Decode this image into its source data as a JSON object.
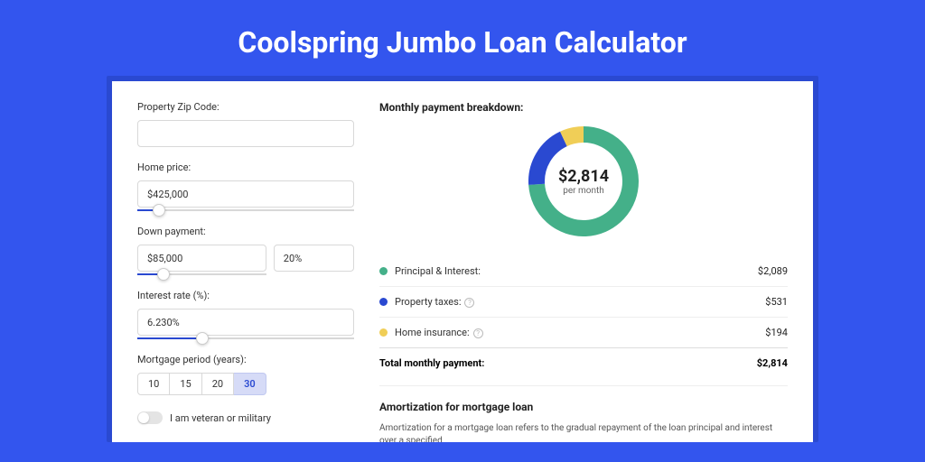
{
  "page_title": "Coolspring Jumbo Loan Calculator",
  "colors": {
    "page_bg": "#3355ee",
    "card_wrap_bg": "#2a49d1",
    "card_bg": "#ffffff",
    "accent": "#2a49d1"
  },
  "form": {
    "zip": {
      "label": "Property Zip Code:",
      "value": ""
    },
    "price": {
      "label": "Home price:",
      "value": "$425,000",
      "slider_pct": 10
    },
    "down": {
      "label": "Down payment:",
      "value": "$85,000",
      "pct": "20%",
      "slider_pct": 20
    },
    "rate": {
      "label": "Interest rate (%):",
      "value": "6.230%",
      "slider_pct": 30
    },
    "period": {
      "label": "Mortgage period (years):",
      "options": [
        "10",
        "15",
        "20",
        "30"
      ],
      "selected": "30"
    },
    "veteran_label": "I am veteran or military",
    "veteran_on": false
  },
  "breakdown": {
    "title": "Monthly payment breakdown:",
    "chart": {
      "type": "donut",
      "amount": "$2,814",
      "sub": "per month",
      "slices": [
        {
          "label": "Principal & Interest:",
          "value": "$2,089",
          "pct": 74,
          "color": "#44b089"
        },
        {
          "label": "Property taxes:",
          "value": "$531",
          "pct": 19,
          "color": "#2a49d1",
          "info": true
        },
        {
          "label": "Home insurance:",
          "value": "$194",
          "pct": 7,
          "color": "#f0ce57",
          "info": true
        }
      ],
      "stroke_width": 18,
      "size": 122
    },
    "total_label": "Total monthly payment:",
    "total_value": "$2,814"
  },
  "amort": {
    "title": "Amortization for mortgage loan",
    "text": "Amortization for a mortgage loan refers to the gradual repayment of the loan principal and interest over a specified"
  }
}
